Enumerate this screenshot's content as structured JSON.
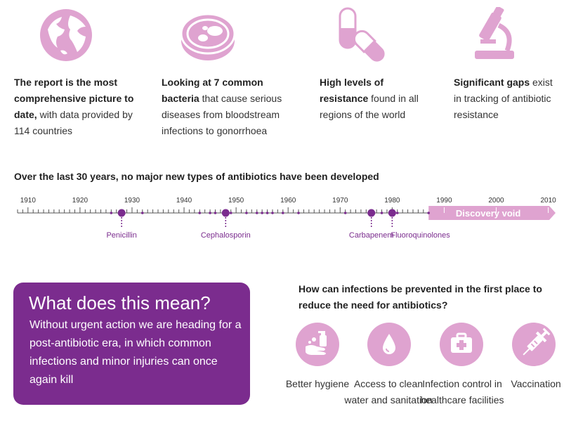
{
  "colors": {
    "accent_purple": "#7b2c8e",
    "light_pink": "#dfa3d0",
    "text": "#333333"
  },
  "facts": [
    {
      "icon": "globe-icon",
      "bold": "The report is the most comprehensive picture to date,",
      "rest": " with data provided by 114 countries"
    },
    {
      "icon": "petri-dish-icon",
      "bold": "Looking at 7 common bacteria",
      "rest": " that cause serious diseases from bloodstream infections to gonorrhoea"
    },
    {
      "icon": "capsule-icon",
      "bold": "High levels of resistance",
      "rest": " found in all regions of the world"
    },
    {
      "icon": "microscope-icon",
      "bold": "Significant gaps",
      "rest": " exist in tracking of antibiotic resistance"
    }
  ],
  "timeline": {
    "title": "Over the last 30 years, no major new types of antibiotics have been developed",
    "decades": [
      "1910",
      "1920",
      "1930",
      "1940",
      "1950",
      "1960",
      "1970",
      "1980",
      "1990",
      "2000",
      "2010"
    ],
    "start_year": 1908,
    "end_year": 2011,
    "milestones": [
      {
        "year": 1928,
        "label": "Penicillin"
      },
      {
        "year": 1948,
        "label": "Cephalosporin"
      },
      {
        "year": 1976,
        "label": "Carbapenem"
      },
      {
        "year": 1980,
        "label": "Fluoroquinolones"
      }
    ],
    "minor_discoveries": [
      1926,
      1932,
      1943,
      1945,
      1946,
      1949,
      1952,
      1954,
      1955,
      1956,
      1957,
      1959,
      1962,
      1971,
      1978,
      1981,
      1987
    ],
    "void_label": "Discovery void",
    "void_start_year": 1987
  },
  "meaning": {
    "title": "What does this mean?",
    "text": "Without urgent action we are heading for a post-antibiotic era, in which common infections and minor injuries can once again kill"
  },
  "prevention": {
    "question": "How can infections be prevented in the first place to reduce the need for antibiotics?",
    "items": [
      {
        "icon": "hand-washing-icon",
        "label": "Better hygiene"
      },
      {
        "icon": "water-drop-icon",
        "label": "Access to clean water and sanitation"
      },
      {
        "icon": "first-aid-kit-icon",
        "label": "Infection control in healthcare facilities"
      },
      {
        "icon": "syringe-icon",
        "label": "Vaccination"
      }
    ]
  }
}
